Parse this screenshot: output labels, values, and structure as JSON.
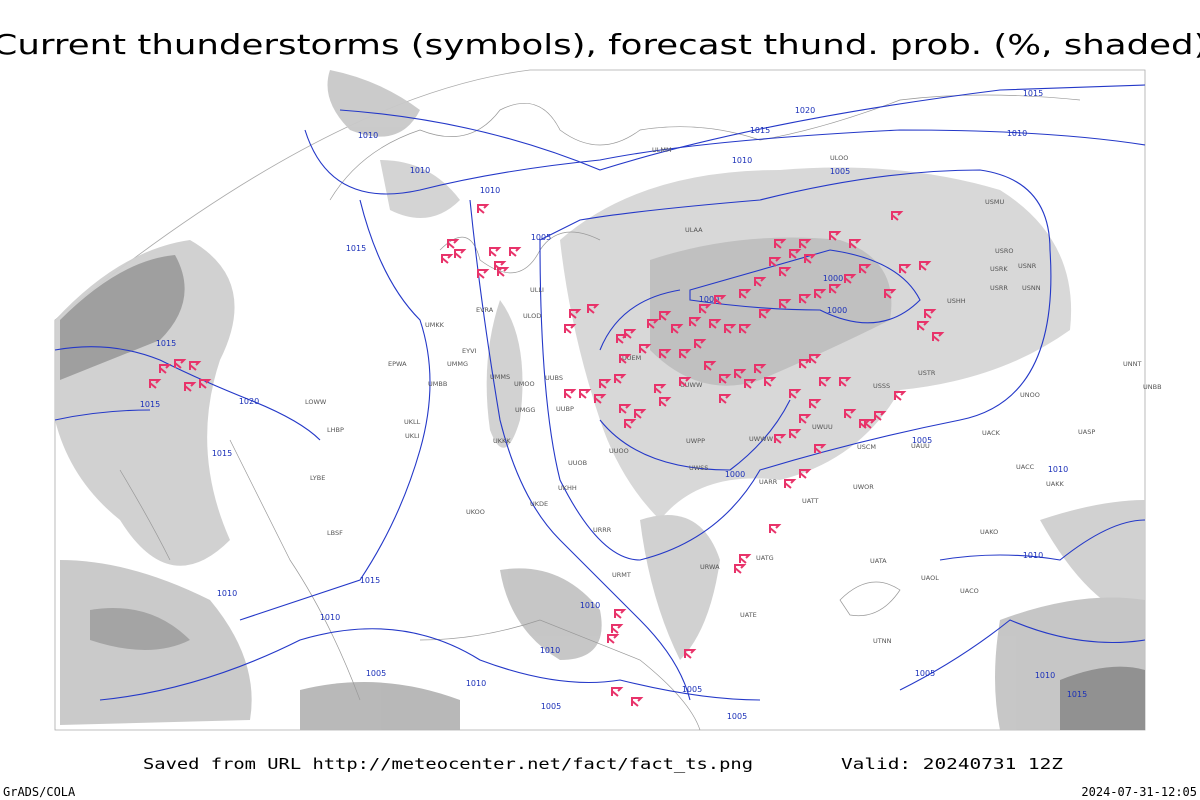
{
  "title": "Current thunderstorms (symbols), forecast thund. prob. (%, shaded)",
  "footer": {
    "source": "Saved from URL http://meteocenter.net/fact/fact_ts.png",
    "valid": "Valid: 20240731 12Z",
    "software": "GrADS/COLA",
    "timestamp": "2024-07-31-12:05"
  },
  "isobar_labels": [
    "1020",
    "1015",
    "1015",
    "1010",
    "1010",
    "1010",
    "1010",
    "1010",
    "1005",
    "1005",
    "1015",
    "1015",
    "1015",
    "1020",
    "1015",
    "1000",
    "1000",
    "1000",
    "1005",
    "1000",
    "1010",
    "1010",
    "1015",
    "1010",
    "1010",
    "1010",
    "1010",
    "1005",
    "1010",
    "1005",
    "1005",
    "1005",
    "1005",
    "1010",
    "1015"
  ],
  "stations": [
    "ULMM",
    "ULOO",
    "USMU",
    "ULAA",
    "USRO",
    "USRK",
    "USNR",
    "USRR",
    "USNN",
    "USHH",
    "UMKK",
    "ULOD",
    "EVRA",
    "EYVI",
    "UMMG",
    "UUEM",
    "ULLI",
    "UMMS",
    "UMOO",
    "UUBS",
    "EPWA",
    "UMBB",
    "UUWW",
    "USSS",
    "USTR",
    "UMGG",
    "UUBP",
    "UKLL",
    "UKLI",
    "UKKK",
    "UUOO",
    "UWPP",
    "UWWW",
    "UWUU",
    "USCM",
    "UAUU",
    "UACK",
    "UASP",
    "UNNT",
    "UNBB",
    "UNOO",
    "LOWW",
    "LHBP",
    "LYBE",
    "UUOB",
    "UWSS",
    "UACC",
    "UAKK",
    "UKHH",
    "UKOO",
    "UKDE",
    "UARR",
    "UWOR",
    "UATT",
    "LBSF",
    "UAKO",
    "URRR",
    "UATG",
    "URWA",
    "UATA",
    "UAOL",
    "UACO",
    "URMT",
    "UATE",
    "UTNN"
  ]
}
